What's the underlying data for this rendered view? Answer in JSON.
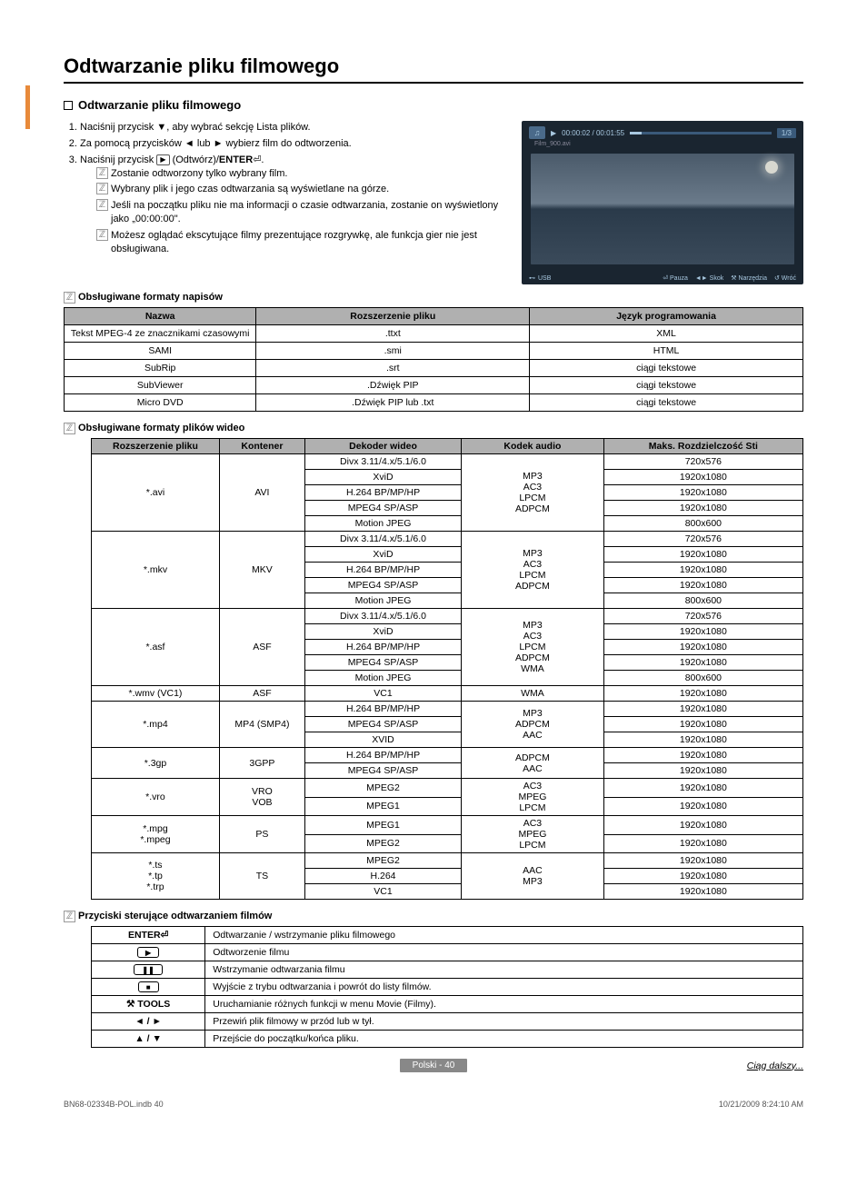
{
  "title": "Odtwarzanie pliku filmowego",
  "section_heading": "Odtwarzanie pliku filmowego",
  "steps": [
    "Naciśnij przycisk ▼, aby wybrać sekcję Lista plików.",
    "Za pomocą przycisków ◄ lub ► wybierz film do odtworzenia."
  ],
  "step3_prefix": "Naciśnij przycisk ",
  "step3_mid": " (Odtwórz)/",
  "step3_enter": "ENTER",
  "step3_glyph": "⏎",
  "step3_suffix": ".",
  "notes": [
    "Zostanie odtworzony tylko wybrany film.",
    "Wybrany plik i jego czas odtwarzania są wyświetlane na górze.",
    "Jeśli na początku pliku nie ma informacji o czasie odtwarzania, zostanie on wyświetlony jako „00:00:00\".",
    "Możesz oglądać ekscytujące filmy prezentujące rozgrywkę, ale funkcja gier nie jest obsługiwana."
  ],
  "preview": {
    "time": "00:00:02 / 00:01:55",
    "count": "1/3",
    "filename": "Film_900.avi",
    "usb": "USB",
    "pauza": "⏎ Pauza",
    "skok": "◄► Skok",
    "narz": "⚒ Narzędzia",
    "wroc": "↺ Wróć"
  },
  "subtitle_heading": "Obsługiwane formaty napisów",
  "t1": {
    "headers": [
      "Nazwa",
      "Rozszerzenie pliku",
      "Język programowania"
    ],
    "rows": [
      [
        "Tekst MPEG-4 ze znacznikami czasowymi",
        ".ttxt",
        "XML"
      ],
      [
        "SAMI",
        ".smi",
        "HTML"
      ],
      [
        "SubRip",
        ".srt",
        "ciągi tekstowe"
      ],
      [
        "SubViewer",
        ".Dźwięk PIP",
        "ciągi tekstowe"
      ],
      [
        "Micro DVD",
        ".Dźwięk PIP lub .txt",
        "ciągi tekstowe"
      ]
    ]
  },
  "video_heading": "Obsługiwane formaty plików wideo",
  "t2": {
    "headers": [
      "Rozszerzenie pliku",
      "Kontener",
      "Dekoder wideo",
      "Kodek audio",
      "Maks. Rozdzielczość Sti"
    ],
    "groups": [
      {
        "ext": "*.avi",
        "cont": "AVI",
        "audio": "MP3\nAC3\nLPCM\nADPCM",
        "rows": [
          [
            "Divx 3.11/4.x/5.1/6.0",
            "720x576"
          ],
          [
            "XviD",
            "1920x1080"
          ],
          [
            "H.264 BP/MP/HP",
            "1920x1080"
          ],
          [
            "MPEG4 SP/ASP",
            "1920x1080"
          ],
          [
            "Motion JPEG",
            "800x600"
          ]
        ]
      },
      {
        "ext": "*.mkv",
        "cont": "MKV",
        "audio": "MP3\nAC3\nLPCM\nADPCM",
        "rows": [
          [
            "Divx 3.11/4.x/5.1/6.0",
            "720x576"
          ],
          [
            "XviD",
            "1920x1080"
          ],
          [
            "H.264 BP/MP/HP",
            "1920x1080"
          ],
          [
            "MPEG4 SP/ASP",
            "1920x1080"
          ],
          [
            "Motion JPEG",
            "800x600"
          ]
        ]
      },
      {
        "ext": "*.asf",
        "cont": "ASF",
        "audio": "MP3\nAC3\nLPCM\nADPCM\nWMA",
        "rows": [
          [
            "Divx 3.11/4.x/5.1/6.0",
            "720x576"
          ],
          [
            "XviD",
            "1920x1080"
          ],
          [
            "H.264 BP/MP/HP",
            "1920x1080"
          ],
          [
            "MPEG4 SP/ASP",
            "1920x1080"
          ],
          [
            "Motion JPEG",
            "800x600"
          ]
        ]
      },
      {
        "ext": "*.wmv (VC1)",
        "cont": "ASF",
        "audio": "WMA",
        "rows": [
          [
            "VC1",
            "1920x1080"
          ]
        ]
      },
      {
        "ext": "*.mp4",
        "cont": "MP4 (SMP4)",
        "audio": "MP3\nADPCM\nAAC",
        "rows": [
          [
            "H.264 BP/MP/HP",
            "1920x1080"
          ],
          [
            "MPEG4 SP/ASP",
            "1920x1080"
          ],
          [
            "XVID",
            "1920x1080"
          ]
        ]
      },
      {
        "ext": "*.3gp",
        "cont": "3GPP",
        "audio": "ADPCM\nAAC",
        "rows": [
          [
            "H.264 BP/MP/HP",
            "1920x1080"
          ],
          [
            "MPEG4 SP/ASP",
            "1920x1080"
          ]
        ]
      },
      {
        "ext": "*.vro",
        "cont": "VRO\nVOB",
        "audio": "AC3\nMPEG\nLPCM",
        "rows": [
          [
            "MPEG2",
            "1920x1080"
          ],
          [
            "MPEG1",
            "1920x1080"
          ]
        ]
      },
      {
        "ext": "*.mpg\n*.mpeg",
        "cont": "PS",
        "audio": "AC3\nMPEG\nLPCM",
        "rows": [
          [
            "MPEG1",
            "1920x1080"
          ],
          [
            "MPEG2",
            "1920x1080"
          ]
        ]
      },
      {
        "ext": "*.ts\n*.tp\n*.trp",
        "cont": "TS",
        "audio": "AAC\nMP3",
        "rows": [
          [
            "MPEG2",
            "1920x1080"
          ],
          [
            "H.264",
            "1920x1080"
          ],
          [
            "VC1",
            "1920x1080"
          ]
        ]
      }
    ]
  },
  "controls_heading": "Przyciski sterujące odtwarzaniem filmów",
  "t3": {
    "rows": [
      [
        "enter",
        "ENTER⏎",
        "Odtwarzanie / wstrzymanie pliku filmowego"
      ],
      [
        "play",
        "▶",
        "Odtworzenie filmu"
      ],
      [
        "pause",
        "❚❚",
        "Wstrzymanie odtwarzania filmu"
      ],
      [
        "stop",
        "■",
        "Wyjście z trybu odtwarzania i powrót do listy filmów."
      ],
      [
        "tools",
        "⚒ TOOLS",
        "Uruchamianie różnych funkcji w menu Movie (Filmy)."
      ],
      [
        "lr",
        "◄ / ►",
        "Przewiń plik filmowy w przód lub w tył."
      ],
      [
        "ud",
        "▲ / ▼",
        "Przejście do początku/końca pliku."
      ]
    ]
  },
  "page_label": "Polski - 40",
  "continued": "Ciąg dalszy...",
  "doc_file": "BN68-02334B-POL.indb   40",
  "doc_date": "10/21/2009   8:24:10 AM"
}
